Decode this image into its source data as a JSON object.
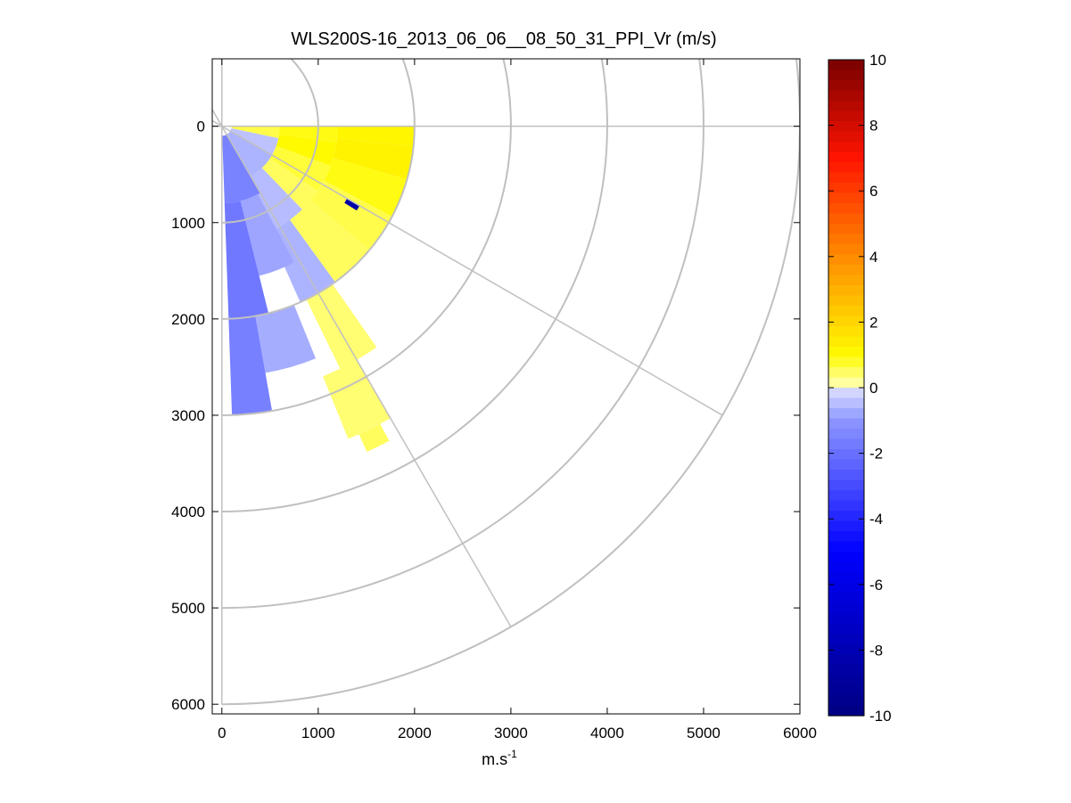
{
  "chart_data": {
    "type": "heatmap",
    "title": "WLS200S-16_2013_06_06__08_50_31_PPI_Vr (m/s)",
    "xlabel": "m.s",
    "xlabel_superscript": "-1",
    "ylabel": "",
    "xlim": [
      -100,
      6000
    ],
    "ylim": [
      -700,
      6100
    ],
    "y_axis_reversed": true,
    "x_ticks": [
      "0",
      "1000",
      "2000",
      "3000",
      "4000",
      "5000",
      "6000"
    ],
    "x_tick_values": [
      0,
      1000,
      2000,
      3000,
      4000,
      5000,
      6000
    ],
    "y_ticks": [
      "0",
      "1000",
      "2000",
      "3000",
      "4000",
      "5000",
      "6000"
    ],
    "y_tick_values": [
      0,
      1000,
      2000,
      3000,
      4000,
      5000,
      6000
    ],
    "polar_grid": {
      "range_rings_m": [
        1000,
        2000,
        3000,
        4000,
        5000,
        6000
      ],
      "spoke_angles_deg_from_east": [
        0,
        30,
        60,
        90
      ]
    },
    "colorbar": {
      "min": -10,
      "max": 10,
      "ticks": [
        "10",
        "8",
        "6",
        "4",
        "2",
        "0",
        "-2",
        "-4",
        "-6",
        "-8",
        "-10"
      ],
      "tick_values": [
        10,
        8,
        6,
        4,
        2,
        0,
        -2,
        -4,
        -6,
        -8,
        -10
      ]
    },
    "velocity_bins": [
      {
        "r0": 100,
        "r1": 600,
        "a0": 0,
        "a1": 12,
        "v": 0.6
      },
      {
        "r0": 600,
        "r1": 1200,
        "a0": 0,
        "a1": 8,
        "v": 0.9
      },
      {
        "r0": 1200,
        "r1": 2000,
        "a0": 0,
        "a1": 6,
        "v": 1.1
      },
      {
        "r0": 600,
        "r1": 1200,
        "a0": 8,
        "a1": 20,
        "v": 1.0
      },
      {
        "r0": 1200,
        "r1": 2000,
        "a0": 6,
        "a1": 16,
        "v": 1.2
      },
      {
        "r0": 1200,
        "r1": 2000,
        "a0": 16,
        "a1": 28,
        "v": 0.9
      },
      {
        "r0": 600,
        "r1": 1200,
        "a0": 20,
        "a1": 34,
        "v": 0.7
      },
      {
        "r0": 1200,
        "r1": 2000,
        "a0": 28,
        "a1": 40,
        "v": 0.6
      },
      {
        "r0": 600,
        "r1": 1200,
        "a0": 34,
        "a1": 46,
        "v": 0.5
      },
      {
        "r0": 1200,
        "r1": 2000,
        "a0": 40,
        "a1": 54,
        "v": 0.5
      },
      {
        "r0": 2000,
        "r1": 2800,
        "a0": 55,
        "a1": 64,
        "v": 0.4
      },
      {
        "r0": 2800,
        "r1": 3500,
        "a0": 60,
        "a1": 68,
        "v": 0.4
      },
      {
        "r0": 3500,
        "r1": 3700,
        "a0": 62,
        "a1": 66,
        "v": 0.5
      },
      {
        "r0": 100,
        "r1": 600,
        "a0": 12,
        "a1": 30,
        "v": -0.4
      },
      {
        "r0": 100,
        "r1": 600,
        "a0": 30,
        "a1": 60,
        "v": -0.6
      },
      {
        "r0": 600,
        "r1": 1200,
        "a0": 46,
        "a1": 62,
        "v": -0.5
      },
      {
        "r0": 1200,
        "r1": 2000,
        "a0": 54,
        "a1": 66,
        "v": -0.6
      },
      {
        "r0": 100,
        "r1": 800,
        "a0": 60,
        "a1": 88,
        "v": -1.5
      },
      {
        "r0": 800,
        "r1": 1600,
        "a0": 62,
        "a1": 76,
        "v": -0.8
      },
      {
        "r0": 800,
        "r1": 2000,
        "a0": 76,
        "a1": 88,
        "v": -1.8
      },
      {
        "r0": 2000,
        "r1": 2600,
        "a0": 68,
        "a1": 80,
        "v": -0.7
      },
      {
        "r0": 2000,
        "r1": 3000,
        "a0": 80,
        "a1": 88,
        "v": -1.6
      },
      {
        "r0": 1500,
        "r1": 1650,
        "a0": 30,
        "a1": 32,
        "v": -8.5
      }
    ]
  }
}
